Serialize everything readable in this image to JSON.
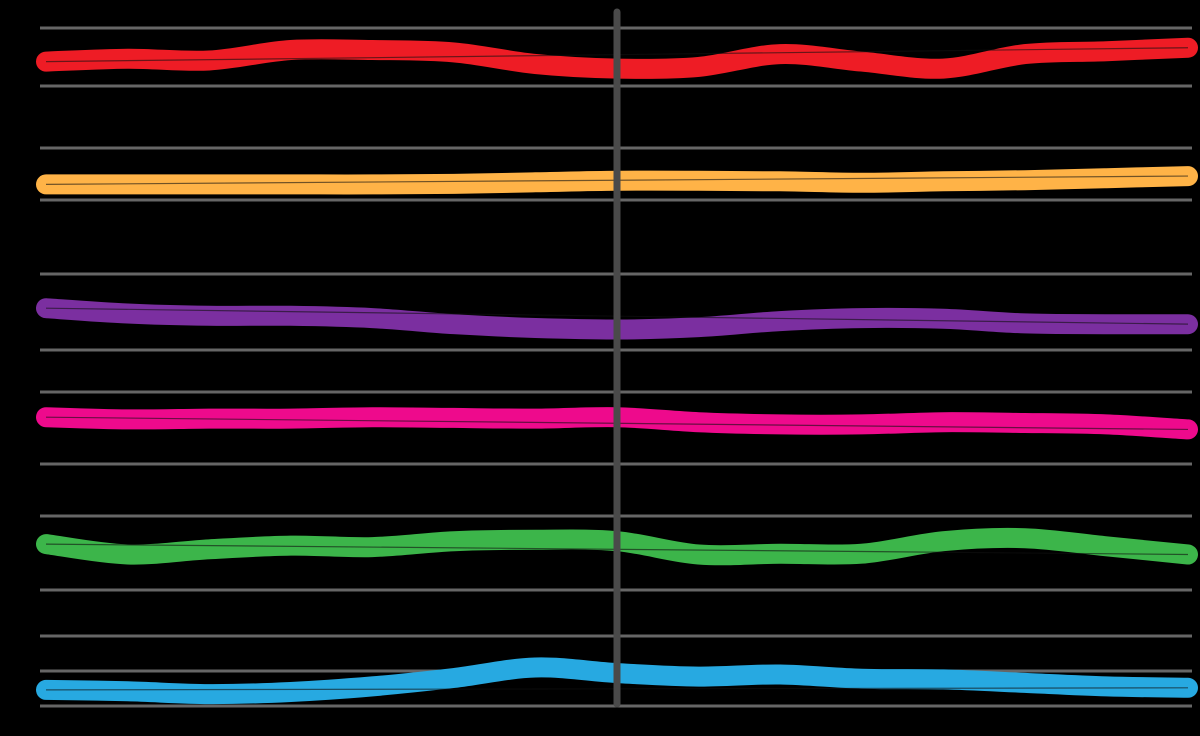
{
  "chart_data": {
    "type": "line",
    "title": "",
    "xlabel": "",
    "ylabel": "",
    "legend": "none",
    "grid": true,
    "x": [
      0,
      1,
      2,
      3,
      4,
      5,
      6,
      7,
      8,
      9,
      10,
      11,
      12,
      13,
      14
    ],
    "center_divider_x": 7,
    "series": [
      {
        "color": "#EE1C25",
        "values": [
          0.42,
          0.47,
          0.44,
          0.62,
          0.62,
          0.58,
          0.38,
          0.3,
          0.33,
          0.55,
          0.42,
          0.3,
          0.55,
          0.6,
          0.66
        ]
      },
      {
        "color": "#FFB347",
        "values": [
          0.3,
          0.3,
          0.3,
          0.3,
          0.3,
          0.31,
          0.34,
          0.37,
          0.37,
          0.36,
          0.33,
          0.36,
          0.38,
          0.42,
          0.46
        ]
      },
      {
        "color": "#7B2FA0",
        "values": [
          0.55,
          0.48,
          0.45,
          0.45,
          0.42,
          0.34,
          0.29,
          0.27,
          0.3,
          0.38,
          0.42,
          0.41,
          0.35,
          0.34,
          0.34
        ]
      },
      {
        "color": "#EE0A8C",
        "values": [
          0.65,
          0.62,
          0.63,
          0.63,
          0.65,
          0.64,
          0.63,
          0.65,
          0.58,
          0.55,
          0.55,
          0.58,
          0.57,
          0.55,
          0.48
        ]
      },
      {
        "color": "#3CB54A",
        "values": [
          0.62,
          0.48,
          0.55,
          0.6,
          0.58,
          0.66,
          0.68,
          0.66,
          0.48,
          0.49,
          0.49,
          0.66,
          0.7,
          0.59,
          0.48
        ]
      },
      {
        "color": "#27A9E1",
        "values": [
          0.23,
          0.21,
          0.17,
          0.2,
          0.28,
          0.4,
          0.55,
          0.47,
          0.42,
          0.45,
          0.39,
          0.38,
          0.33,
          0.28,
          0.26
        ]
      }
    ]
  }
}
